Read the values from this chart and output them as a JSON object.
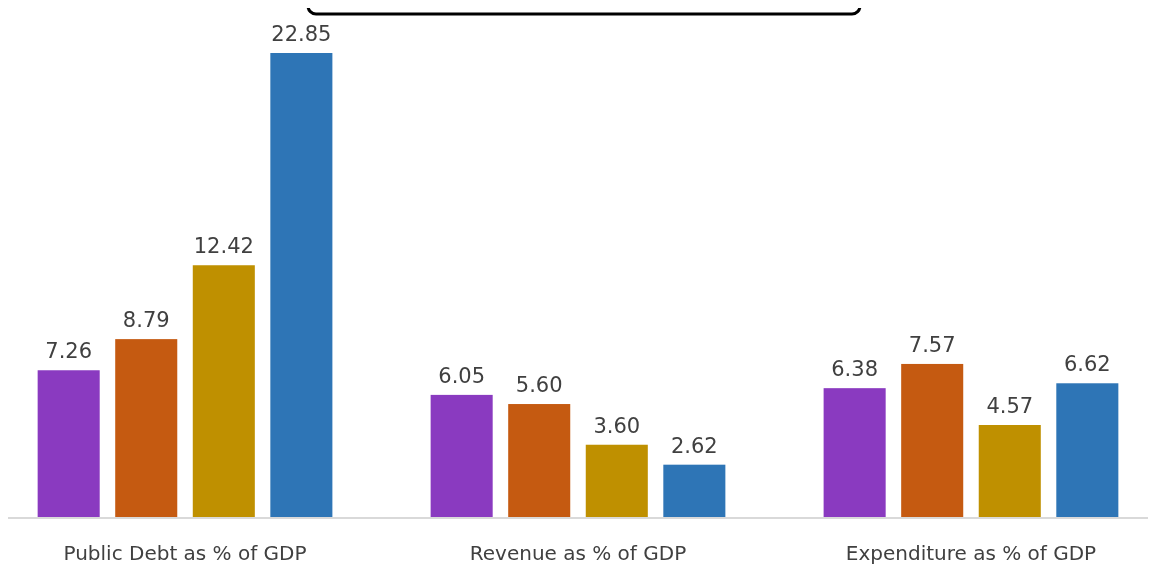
{
  "chart_data": {
    "type": "bar",
    "categories": [
      "Public Debt as % of GDP",
      "Revenue as % of GDP",
      "Expenditure as % of GDP"
    ],
    "series": [
      {
        "color": "#8a3ac0",
        "values": [
          7.26,
          6.05,
          6.38
        ],
        "value_labels": [
          "7.26",
          "6.05",
          "6.38"
        ]
      },
      {
        "color": "#c55a11",
        "values": [
          8.79,
          5.6,
          7.57
        ],
        "value_labels": [
          "8.79",
          "5.60",
          "7.57"
        ]
      },
      {
        "color": "#bf9000",
        "values": [
          12.42,
          3.6,
          4.57
        ],
        "value_labels": [
          "12.42",
          "3.60",
          "4.57"
        ]
      },
      {
        "color": "#2e75b6",
        "values": [
          22.85,
          2.62,
          6.62
        ],
        "value_labels": [
          "22.85",
          "2.62",
          "6.62"
        ]
      }
    ]
  }
}
